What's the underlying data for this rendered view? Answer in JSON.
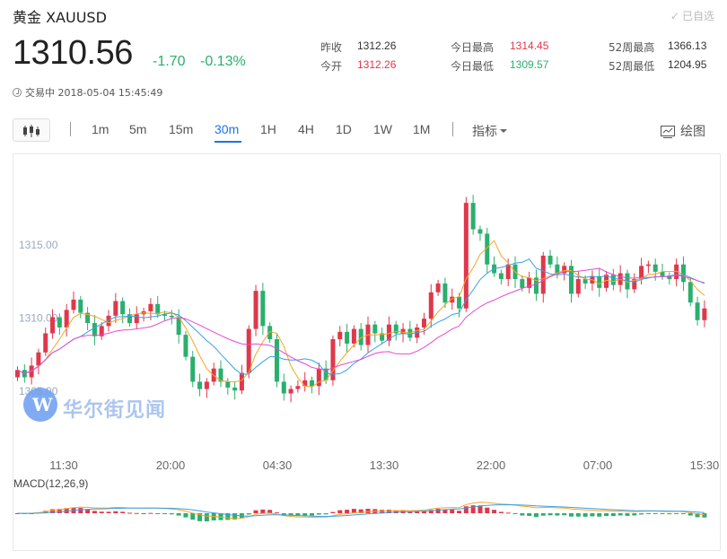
{
  "header": {
    "title": "黄金 XAUUSD",
    "watch_label": "已自选",
    "watch_check": "✓",
    "price": "1310.56",
    "change": "-1.70",
    "change_pct": "-0.13%",
    "status": "交易中 2018-05-04 15:45:49"
  },
  "stats": [
    {
      "label": "昨收",
      "value": "1312.26",
      "color": "blk"
    },
    {
      "label": "今开",
      "value": "1312.26",
      "color": "red"
    },
    {
      "label": "今日最高",
      "value": "1314.45",
      "color": "red"
    },
    {
      "label": "今日最低",
      "value": "1309.57",
      "color": "grn"
    },
    {
      "label": "52周最高",
      "value": "1366.13",
      "color": "blk"
    },
    {
      "label": "52周最低",
      "value": "1204.95",
      "color": "blk"
    }
  ],
  "toolbar": {
    "periods": [
      "1m",
      "5m",
      "15m",
      "30m",
      "1H",
      "4H",
      "1D",
      "1W",
      "1M"
    ],
    "active_period": "30m",
    "indicator_label": "指标",
    "draw_label": "绘图"
  },
  "watermark": {
    "logo_letter": "W",
    "text": "华尔街见闻"
  },
  "colors": {
    "up": "#e0374b",
    "down": "#2aaf6e",
    "accent": "#1b74e4"
  },
  "chart_data": {
    "type": "candlestick",
    "y_ticks": [
      "1315.00",
      "1310.00",
      "1305.00"
    ],
    "y_tick_values": [
      1315,
      1310,
      1305
    ],
    "ylim": [
      1301.4,
      1320.5
    ],
    "x_ticks": [
      "11:30",
      "20:00",
      "04:30",
      "13:30",
      "22:00",
      "07:00",
      "15:30"
    ],
    "macd_label": "MACD(12,26,9)",
    "ma_colors": [
      "#f5a623",
      "#3aa0e8",
      "#e54bd0"
    ],
    "closes": [
      1306.4,
      1305.9,
      1306.7,
      1307.6,
      1308.9,
      1310.0,
      1309.3,
      1310.5,
      1311.2,
      1310.3,
      1309.6,
      1308.7,
      1309.4,
      1310.1,
      1311.1,
      1310.2,
      1309.6,
      1310.2,
      1310.4,
      1310.9,
      1310.2,
      1310.1,
      1310.0,
      1308.8,
      1307.3,
      1305.6,
      1305.1,
      1305.6,
      1306.5,
      1305.6,
      1305.2,
      1305.0,
      1306.2,
      1309.2,
      1311.8,
      1309.4,
      1308.5,
      1305.6,
      1304.8,
      1305.1,
      1305.3,
      1305.7,
      1305.3,
      1306.5,
      1305.7,
      1308.5,
      1309.0,
      1308.2,
      1309.2,
      1308.1,
      1309.5,
      1308.9,
      1308.4,
      1309.5,
      1308.9,
      1309.2,
      1308.6,
      1309.3,
      1309.9,
      1311.7,
      1312.3,
      1311.0,
      1311.4,
      1310.6,
      1317.8,
      1316.0,
      1315.7,
      1313.6,
      1313.0,
      1312.6,
      1313.6,
      1312.6,
      1312.0,
      1312.7,
      1311.6,
      1314.2,
      1313.6,
      1313.0,
      1313.5,
      1311.6,
      1312.6,
      1312.3,
      1312.8,
      1312.0,
      1312.9,
      1312.2,
      1313.0,
      1311.9,
      1312.6,
      1313.5,
      1313.6,
      1313.1,
      1312.8,
      1312.6,
      1313.6,
      1312.4,
      1311.0,
      1309.8,
      1310.6
    ]
  }
}
